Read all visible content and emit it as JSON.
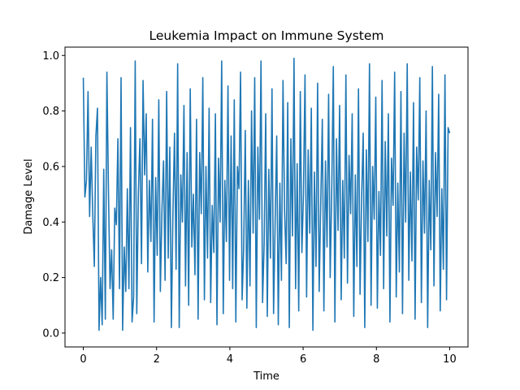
{
  "chart_data": {
    "type": "line",
    "title": "Leukemia Impact on Immune System",
    "xlabel": "Time",
    "ylabel": "Damage Level",
    "xlim": [
      -0.5,
      10.5
    ],
    "ylim": [
      -0.05,
      1.03
    ],
    "x_ticks": [
      0,
      2,
      4,
      6,
      8,
      10
    ],
    "x_tick_labels": [
      "0",
      "2",
      "4",
      "6",
      "8",
      "10"
    ],
    "y_ticks": [
      0.0,
      0.2,
      0.4,
      0.6,
      0.8,
      1.0
    ],
    "y_tick_labels": [
      "0.0",
      "0.2",
      "0.4",
      "0.6",
      "0.8",
      "1.0"
    ],
    "grid": false,
    "legend": "none",
    "series": [
      {
        "color": "#1f77b4",
        "x_start": 0,
        "x_end": 10,
        "values": [
          0.92,
          0.49,
          0.55,
          0.87,
          0.42,
          0.67,
          0.43,
          0.24,
          0.71,
          0.81,
          0.01,
          0.2,
          0.03,
          0.59,
          0.05,
          0.94,
          0.51,
          0.16,
          0.3,
          0.05,
          0.45,
          0.39,
          0.7,
          0.16,
          0.92,
          0.01,
          0.31,
          0.15,
          0.52,
          0.16,
          0.74,
          0.04,
          0.13,
          0.98,
          0.07,
          0.5,
          0.7,
          0.25,
          0.91,
          0.57,
          0.79,
          0.22,
          0.55,
          0.33,
          0.77,
          0.04,
          0.56,
          0.28,
          0.84,
          0.15,
          0.44,
          0.62,
          0.19,
          0.87,
          0.27,
          0.67,
          0.02,
          0.43,
          0.72,
          0.23,
          0.97,
          0.02,
          0.57,
          0.4,
          0.82,
          0.17,
          0.65,
          0.1,
          0.88,
          0.31,
          0.5,
          0.21,
          0.77,
          0.05,
          0.65,
          0.43,
          0.92,
          0.12,
          0.6,
          0.27,
          0.81,
          0.11,
          0.46,
          0.29,
          0.79,
          0.03,
          0.63,
          0.4,
          0.98,
          0.07,
          0.55,
          0.33,
          0.89,
          0.19,
          0.71,
          0.16,
          0.84,
          0.04,
          0.6,
          0.52,
          0.94,
          0.12,
          0.31,
          0.73,
          0.09,
          0.55,
          0.17,
          0.8,
          0.36,
          0.92,
          0.02,
          0.67,
          0.41,
          0.98,
          0.11,
          0.32,
          0.79,
          0.06,
          0.59,
          0.27,
          0.88,
          0.07,
          0.4,
          0.71,
          0.03,
          0.54,
          0.19,
          0.91,
          0.44,
          0.25,
          0.83,
          0.02,
          0.7,
          0.35,
          0.99,
          0.16,
          0.61,
          0.08,
          0.87,
          0.29,
          0.5,
          0.93,
          0.13,
          0.66,
          0.36,
          0.81,
          0.01,
          0.58,
          0.24,
          0.9,
          0.15,
          0.47,
          0.77,
          0.08,
          0.62,
          0.31,
          0.86,
          0.2,
          0.52,
          0.96,
          0.04,
          0.7,
          0.37,
          0.82,
          0.12,
          0.55,
          0.27,
          0.93,
          0.18,
          0.64,
          0.43,
          0.79,
          0.06,
          0.57,
          0.24,
          0.88,
          0.14,
          0.49,
          0.72,
          0.02,
          0.66,
          0.33,
          0.97,
          0.1,
          0.6,
          0.41,
          0.85,
          0.09,
          0.51,
          0.28,
          0.91,
          0.16,
          0.69,
          0.35,
          0.79,
          0.04,
          0.63,
          0.46,
          0.94,
          0.13,
          0.54,
          0.22,
          0.87,
          0.07,
          0.72,
          0.4,
          0.97,
          0.19,
          0.58,
          0.26,
          0.83,
          0.05,
          0.67,
          0.48,
          0.92,
          0.11,
          0.62,
          0.36,
          0.8,
          0.02,
          0.55,
          0.3,
          0.96,
          0.17,
          0.65,
          0.42,
          0.86,
          0.08,
          0.52,
          0.23,
          0.93,
          0.12,
          0.74,
          0.72
        ]
      }
    ]
  }
}
